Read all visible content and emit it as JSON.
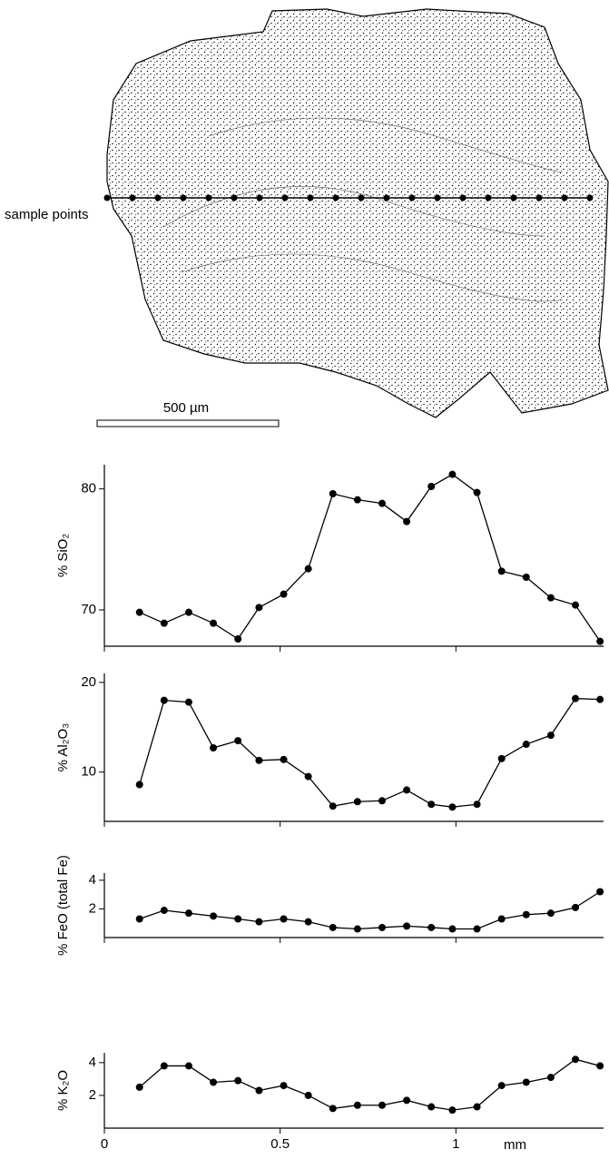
{
  "illustration": {
    "label": "sample points",
    "scale_bar": "500 µm"
  },
  "chart_data": [
    {
      "type": "line",
      "ylabel": "% SiO₂",
      "color": "#000000",
      "x": [
        0.1,
        0.17,
        0.24,
        0.31,
        0.38,
        0.44,
        0.51,
        0.58,
        0.65,
        0.72,
        0.79,
        0.86,
        0.93,
        0.99,
        1.06,
        1.13,
        1.2,
        1.27,
        1.34,
        1.41
      ],
      "values": [
        69.8,
        68.9,
        69.8,
        68.9,
        67.6,
        70.2,
        71.3,
        73.4,
        79.6,
        79.1,
        78.8,
        77.3,
        80.2,
        81.2,
        79.7,
        73.2,
        72.7,
        71.0,
        70.4,
        67.4
      ],
      "xlim": [
        0,
        1.42
      ],
      "xticks": [
        0,
        0.5,
        1
      ],
      "ylim": [
        67,
        82
      ],
      "yticks": [
        70,
        80
      ]
    },
    {
      "type": "line",
      "ylabel": "% Al₂O₃",
      "color": "#000000",
      "x": [
        0.1,
        0.17,
        0.24,
        0.31,
        0.38,
        0.44,
        0.51,
        0.58,
        0.65,
        0.72,
        0.79,
        0.86,
        0.93,
        0.99,
        1.06,
        1.13,
        1.2,
        1.27,
        1.34,
        1.41
      ],
      "values": [
        8.6,
        18.0,
        17.8,
        12.7,
        13.5,
        11.3,
        11.4,
        9.5,
        6.2,
        6.7,
        6.8,
        8.0,
        6.4,
        6.1,
        6.4,
        11.5,
        13.1,
        14.1,
        18.2,
        18.1
      ],
      "xlim": [
        0,
        1.42
      ],
      "xticks": [
        0,
        0.5,
        1
      ],
      "ylim": [
        4.5,
        21
      ],
      "yticks": [
        10,
        20
      ]
    },
    {
      "type": "line",
      "ylabel": "% FeO (total Fe)",
      "color": "#000000",
      "x": [
        0.1,
        0.17,
        0.24,
        0.31,
        0.38,
        0.44,
        0.51,
        0.58,
        0.65,
        0.72,
        0.79,
        0.86,
        0.93,
        0.99,
        1.06,
        1.13,
        1.2,
        1.27,
        1.34,
        1.41
      ],
      "values": [
        1.3,
        1.9,
        1.7,
        1.5,
        1.3,
        1.1,
        1.3,
        1.1,
        0.7,
        0.6,
        0.7,
        0.8,
        0.7,
        0.6,
        0.6,
        1.3,
        1.6,
        1.7,
        2.1,
        3.2
      ],
      "xlim": [
        0,
        1.42
      ],
      "xticks": [
        0,
        0.5,
        1
      ],
      "ylim": [
        0,
        4.5
      ],
      "yticks": [
        2,
        4
      ]
    },
    {
      "type": "line",
      "ylabel": "% K₂O",
      "color": "#000000",
      "xlabel": "mm",
      "x": [
        0.1,
        0.17,
        0.24,
        0.31,
        0.38,
        0.44,
        0.51,
        0.58,
        0.65,
        0.72,
        0.79,
        0.86,
        0.93,
        0.99,
        1.06,
        1.13,
        1.2,
        1.27,
        1.34,
        1.41
      ],
      "values": [
        2.5,
        3.8,
        3.8,
        2.8,
        2.9,
        2.3,
        2.6,
        2.0,
        1.2,
        1.4,
        1.4,
        1.7,
        1.3,
        1.1,
        1.3,
        2.6,
        2.8,
        3.1,
        4.2,
        3.8
      ],
      "xlim": [
        0,
        1.42
      ],
      "xticks": [
        0,
        0.5,
        1
      ],
      "ylim": [
        0,
        4.6
      ],
      "yticks": [
        2,
        4
      ]
    }
  ]
}
